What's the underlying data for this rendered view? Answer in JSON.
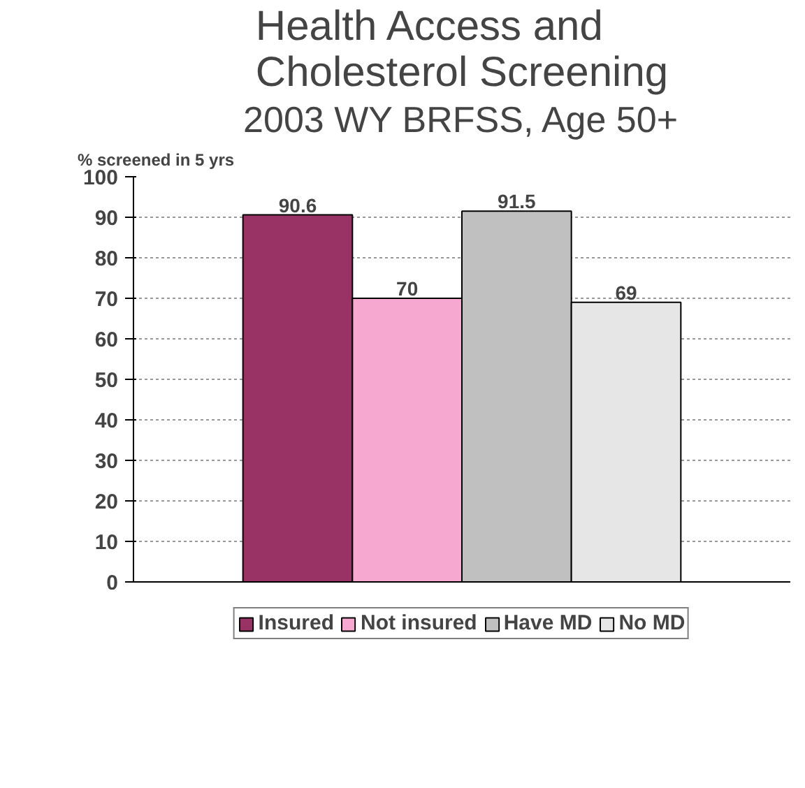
{
  "chart_data": {
    "type": "bar",
    "title": "Health Access and Cholesterol Screening",
    "subtitle": "2003 WY BRFSS, Age 50+",
    "ylabel": "% screened in 5 yrs",
    "categories": [
      null
    ],
    "series": [
      {
        "name": "Insured",
        "color": "#993366",
        "values": [
          90.6
        ]
      },
      {
        "name": "Not insured",
        "color": "#f7a8d0",
        "values": [
          70
        ]
      },
      {
        "name": "Have MD",
        "color": "#c0c0c0",
        "values": [
          91.5
        ]
      },
      {
        "name": "No MD",
        "color": "#e6e6e6",
        "values": [
          69
        ]
      }
    ],
    "ylim": [
      0,
      100
    ],
    "yticks": [
      0,
      10,
      20,
      30,
      40,
      50,
      60,
      70,
      80,
      90,
      100
    ],
    "grid": "y",
    "legend": "bottom",
    "data_labels": true
  }
}
